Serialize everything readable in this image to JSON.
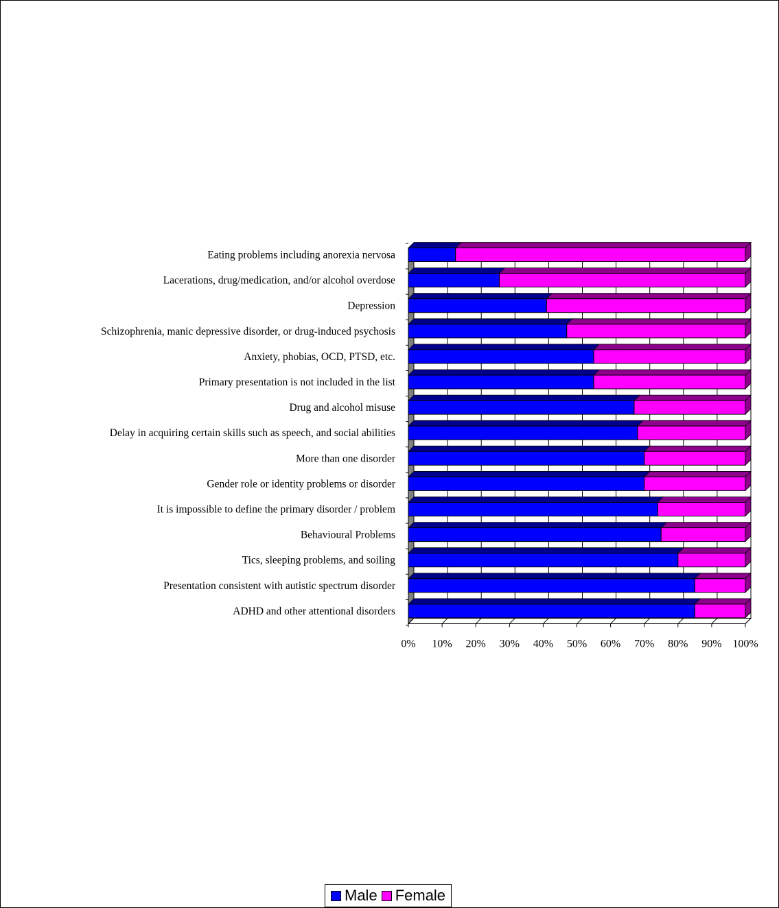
{
  "chart_data": {
    "type": "bar",
    "orientation": "horizontal",
    "stacked": "percent",
    "categories": [
      "Eating problems including anorexia nervosa",
      "Lacerations, drug/medication, and/or alcohol overdose",
      "Depression",
      "Schizophrenia, manic depressive disorder, or drug-induced psychosis",
      "Anxiety, phobias, OCD,  PTSD, etc.",
      "Primary presentation is not included in the list",
      "Drug and alcohol misuse",
      "Delay in acquiring certain skills such as speech, and social abilities",
      "More than one disorder",
      "Gender role or identity problems or disorder",
      "It is impossible to define the primary disorder / problem",
      "Behavioural Problems",
      "Tics, sleeping problems, and soiling",
      "Presentation consistent with autistic spectrum disorder",
      "ADHD and other attentional disorders"
    ],
    "series": [
      {
        "name": "Male",
        "color": "#0000FF",
        "values": [
          14,
          27,
          41,
          47,
          55,
          55,
          67,
          68,
          70,
          70,
          74,
          75,
          80,
          85,
          85
        ]
      },
      {
        "name": "Female",
        "color": "#FF00FF",
        "values": [
          86,
          73,
          59,
          53,
          45,
          45,
          33,
          32,
          30,
          30,
          26,
          25,
          20,
          15,
          15
        ]
      }
    ],
    "x_ticks": [
      "0%",
      "10%",
      "20%",
      "30%",
      "40%",
      "50%",
      "60%",
      "70%",
      "80%",
      "90%",
      "100%"
    ],
    "xlim": [
      0,
      100
    ],
    "grid": true,
    "legend_position": "bottom",
    "three_d": true
  }
}
